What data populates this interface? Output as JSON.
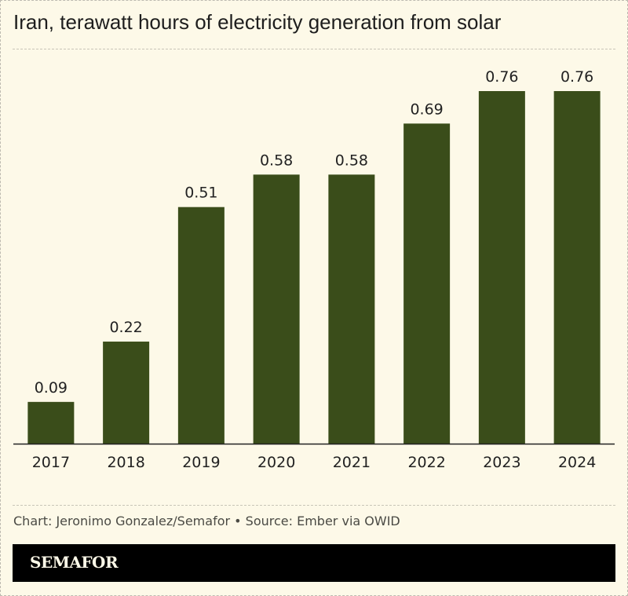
{
  "chart_data": {
    "type": "bar",
    "title": "Iran, terawatt hours of electricity generation from solar",
    "categories": [
      "2017",
      "2018",
      "2019",
      "2020",
      "2021",
      "2022",
      "2023",
      "2024"
    ],
    "values": [
      0.09,
      0.22,
      0.51,
      0.58,
      0.58,
      0.69,
      0.76,
      0.76
    ],
    "data_labels": [
      "0.09",
      "0.22",
      "0.51",
      "0.58",
      "0.58",
      "0.69",
      "0.76",
      "0.76"
    ],
    "xlabel": "",
    "ylabel": "",
    "ylim": [
      0,
      0.76
    ],
    "grid": false,
    "bar_color": "#3a4d1a"
  },
  "footer": {
    "credit": "Chart: Jeronimo Gonzalez/Semafor • Source: Ember via OWID",
    "brand": "SEMAFOR"
  },
  "colors": {
    "background": "#fdf9e8",
    "brand_bar": "#000000"
  }
}
